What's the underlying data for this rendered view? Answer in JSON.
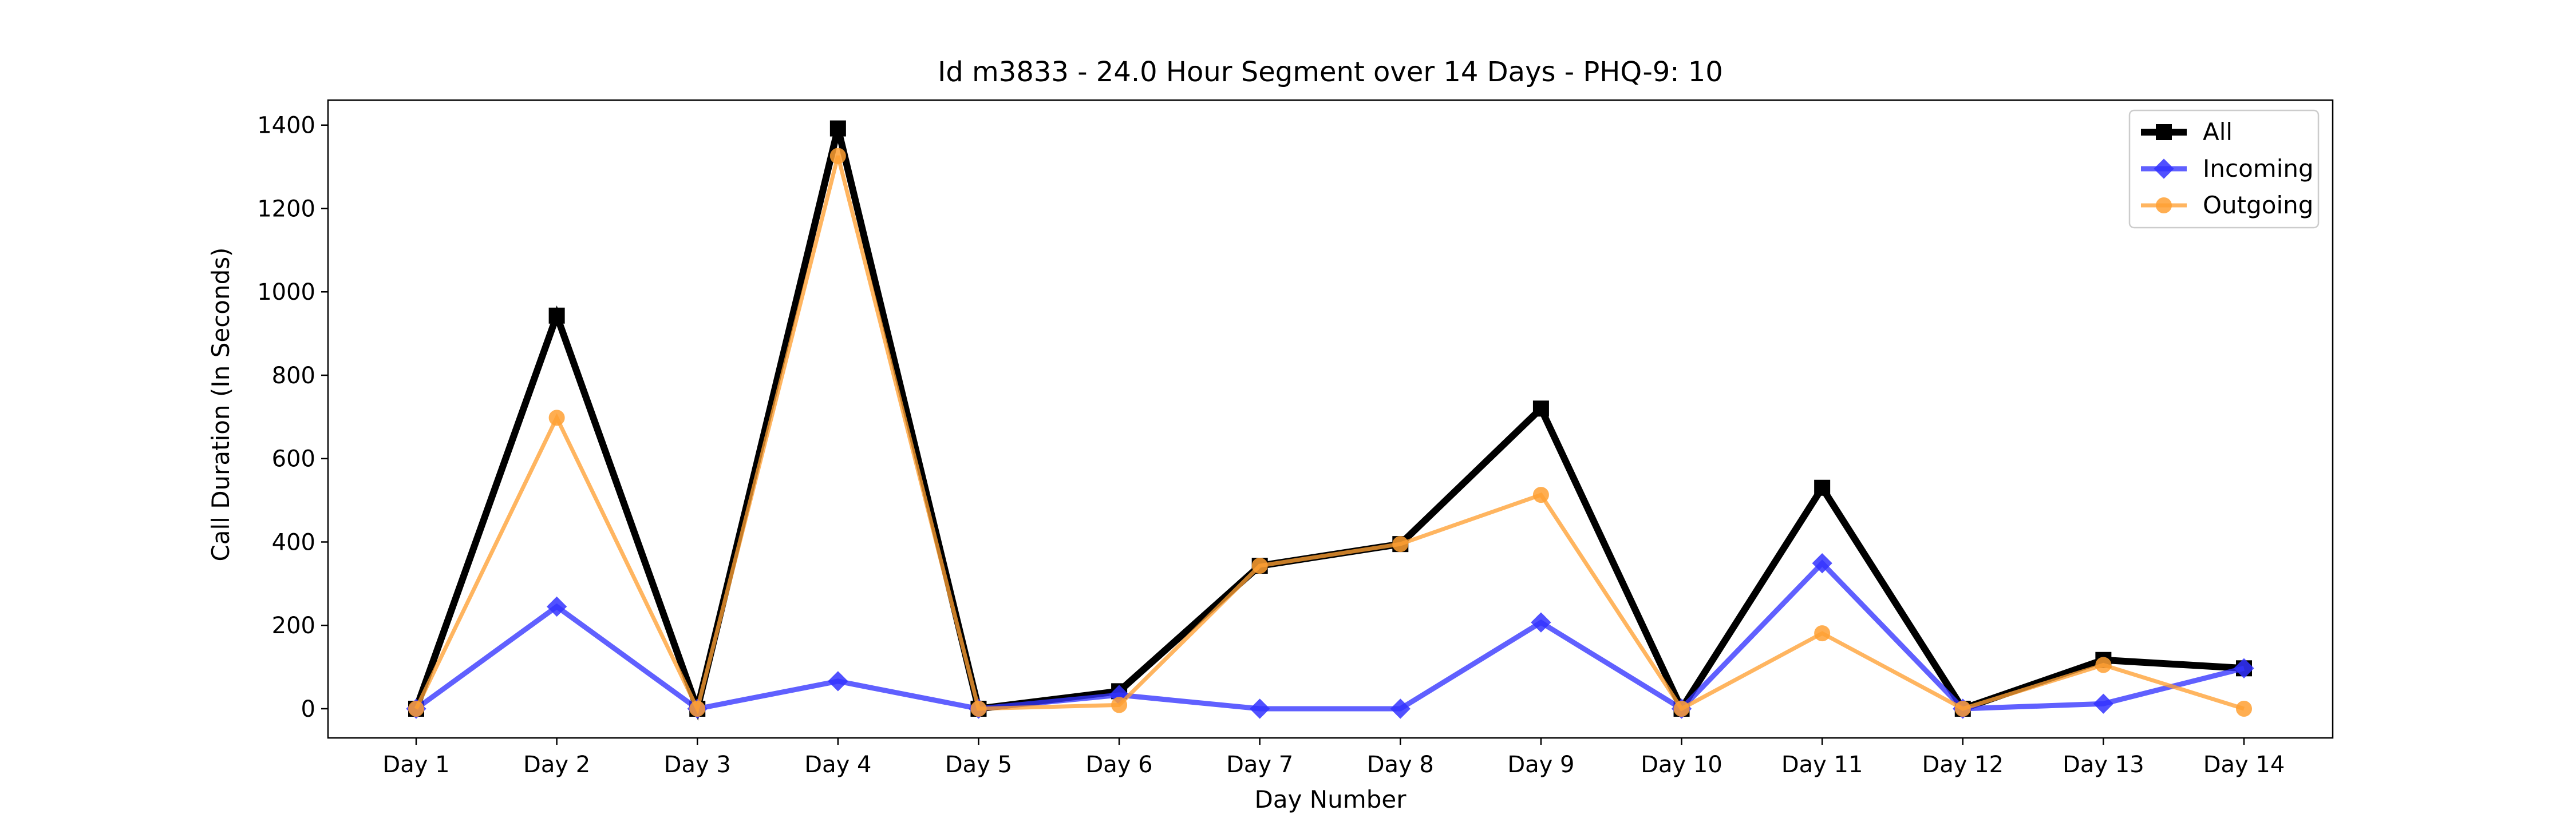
{
  "chart_data": {
    "type": "line",
    "title": "Id m3833 - 24.0 Hour Segment over 14 Days - PHQ-9: 10",
    "xlabel": "Day Number",
    "ylabel": "Call Duration (In Seconds)",
    "categories": [
      "Day 1",
      "Day 2",
      "Day 3",
      "Day 4",
      "Day 5",
      "Day 6",
      "Day 7",
      "Day 8",
      "Day 9",
      "Day 10",
      "Day 11",
      "Day 12",
      "Day 13",
      "Day 14"
    ],
    "ylim": [
      -70,
      1460
    ],
    "yticks": [
      0,
      200,
      400,
      600,
      800,
      1000,
      1200,
      1400
    ],
    "grid": false,
    "legend_position": "top-right",
    "series": [
      {
        "name": "All",
        "color": "#000000",
        "marker": "square",
        "values": [
          0,
          943,
          0,
          1392,
          0,
          42,
          343,
          395,
          720,
          0,
          530,
          0,
          117,
          97
        ]
      },
      {
        "name": "Incoming",
        "color": "#3333ff",
        "marker": "diamond",
        "values": [
          0,
          245,
          0,
          66,
          0,
          33,
          0,
          0,
          207,
          0,
          349,
          0,
          12,
          97
        ]
      },
      {
        "name": "Outgoing",
        "color": "#ffa033",
        "marker": "circle",
        "values": [
          0,
          698,
          0,
          1326,
          0,
          9,
          343,
          395,
          513,
          0,
          181,
          0,
          105,
          0
        ]
      }
    ]
  }
}
